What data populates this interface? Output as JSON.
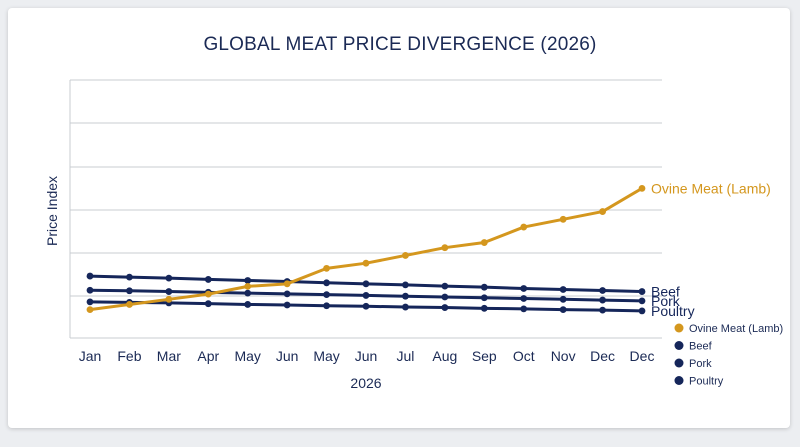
{
  "chart_data": {
    "type": "line",
    "title": "GLOBAL MEAT PRICE DIVERGENCE (2026)",
    "xlabel": "2026",
    "ylabel": "Price Index",
    "categories": [
      "Jan",
      "Feb",
      "Mar",
      "Apr",
      "May",
      "Jun",
      "May",
      "Jun",
      "Jul",
      "Aug",
      "Sep",
      "Oct",
      "Nov",
      "Dec",
      "Dec"
    ],
    "y_tick_labels": "none",
    "ylim": [
      0,
      100
    ],
    "grid": "horizontal",
    "legend": "bottom-right",
    "series": [
      {
        "name": "Ovine Meat (Lamb)",
        "color": "#d4971e",
        "values": [
          11,
          13,
          15,
          17,
          20,
          21,
          27,
          29,
          32,
          35,
          37,
          43,
          46,
          49,
          58
        ]
      },
      {
        "name": "Beef",
        "color": "#15265a",
        "values": [
          24,
          23.6,
          23.2,
          22.7,
          22.3,
          21.9,
          21.4,
          21,
          20.6,
          20.1,
          19.7,
          19.2,
          18.8,
          18.4,
          18
        ]
      },
      {
        "name": "Pork",
        "color": "#15265a",
        "values": [
          18.5,
          18.3,
          18.0,
          17.7,
          17.4,
          17.1,
          16.8,
          16.5,
          16.2,
          15.9,
          15.6,
          15.3,
          15.0,
          14.7,
          14.4
        ]
      },
      {
        "name": "Poultry",
        "color": "#15265a",
        "values": [
          14,
          13.8,
          13.6,
          13.3,
          13.0,
          12.8,
          12.5,
          12.3,
          12.0,
          11.8,
          11.5,
          11.3,
          11.0,
          10.8,
          10.5
        ]
      }
    ]
  }
}
